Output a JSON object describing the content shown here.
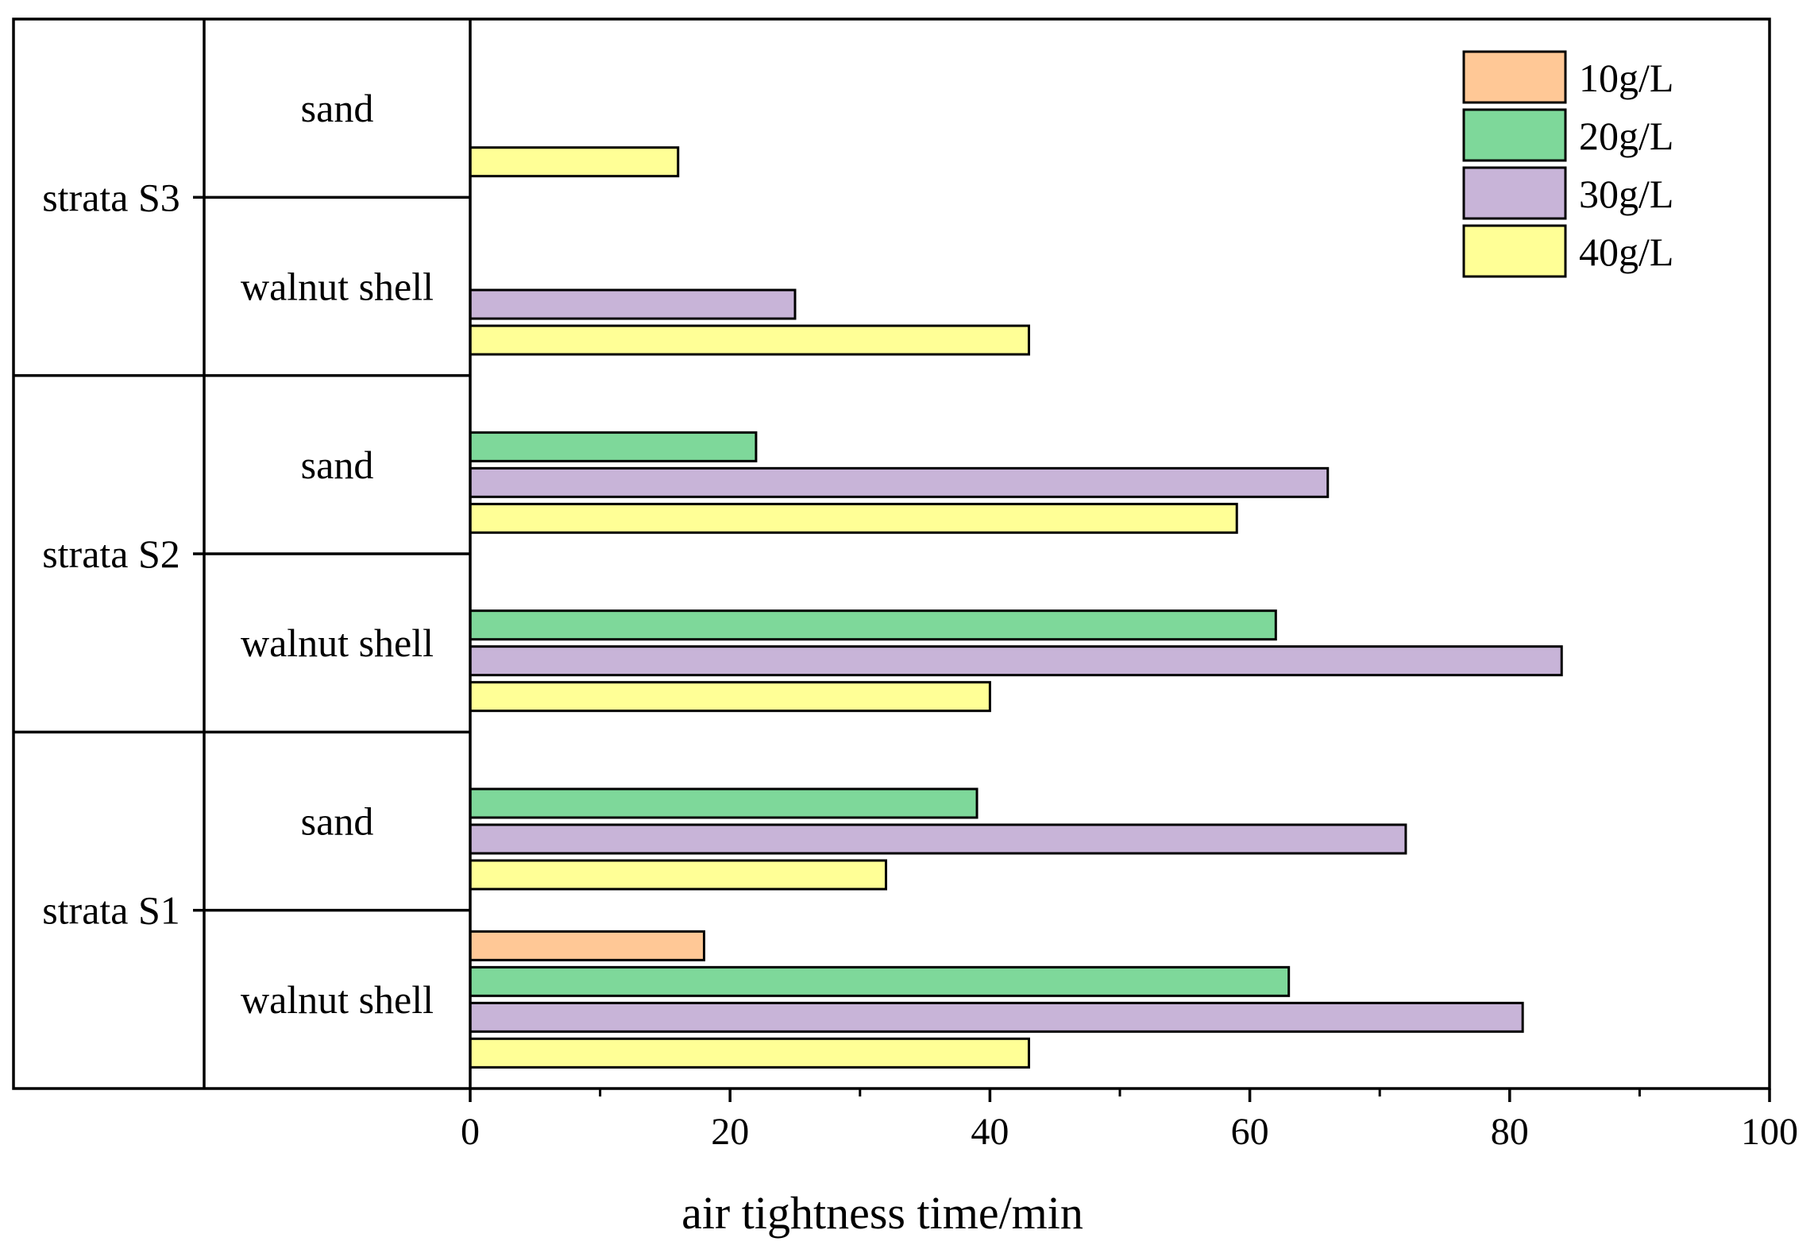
{
  "chart_data": {
    "type": "bar",
    "orientation": "horizontal",
    "title": "",
    "xlabel": "air tightness time/min",
    "ylabel": "",
    "xlim": [
      0,
      100
    ],
    "x_major_ticks": [
      0,
      20,
      40,
      60,
      80,
      100
    ],
    "x_minor_ticks": [
      10,
      30,
      50,
      70,
      90
    ],
    "grid": false,
    "legend_position": "top-right",
    "series": [
      {
        "name": "10g/L",
        "color": "#FFC896"
      },
      {
        "name": "20g/L",
        "color": "#7ED89A"
      },
      {
        "name": "30g/L",
        "color": "#C8B4D8"
      },
      {
        "name": "40g/L",
        "color": "#FFFF96"
      }
    ],
    "groups": [
      {
        "strata": "strata S3",
        "materials": [
          {
            "material": "sand",
            "values": [
              null,
              null,
              null,
              16
            ]
          },
          {
            "material": "walnut shell",
            "values": [
              null,
              null,
              25,
              43
            ]
          }
        ]
      },
      {
        "strata": "strata S2",
        "materials": [
          {
            "material": "sand",
            "values": [
              null,
              22,
              66,
              59
            ]
          },
          {
            "material": "walnut shell",
            "values": [
              null,
              62,
              84,
              40
            ]
          }
        ]
      },
      {
        "strata": "strata S1",
        "materials": [
          {
            "material": "sand",
            "values": [
              null,
              39,
              72,
              32
            ]
          },
          {
            "material": "walnut shell",
            "values": [
              18,
              63,
              81,
              43
            ]
          }
        ]
      }
    ]
  }
}
